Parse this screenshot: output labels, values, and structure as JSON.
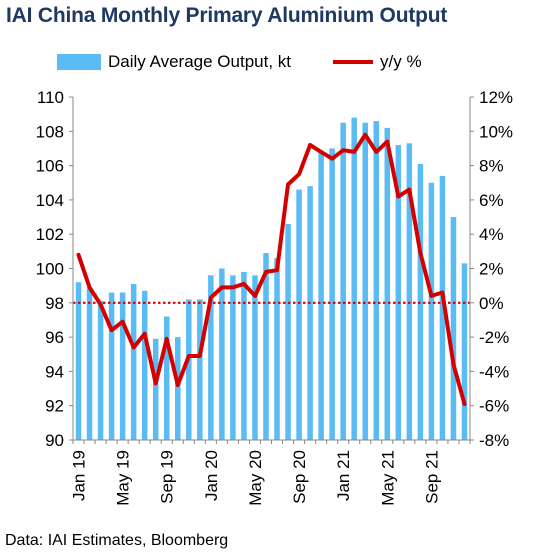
{
  "title": "IAI China Monthly Primary Aluminium Output",
  "source": "Data: IAI Estimates, Bloomberg",
  "colors": {
    "title": "#1f3864",
    "bars": "#5bbcf3",
    "line": "#d40000",
    "zero_line": "#d40000"
  },
  "chart_data": {
    "type": "bar",
    "combo_type": "bar+line",
    "legend": {
      "placement": "top",
      "entries": [
        "Daily Average Output, kt",
        "y/y %"
      ]
    },
    "categories": [
      "Jan 19",
      "Feb 19",
      "Mar 19",
      "Apr 19",
      "May 19",
      "Jun 19",
      "Jul 19",
      "Aug 19",
      "Sep 19",
      "Oct 19",
      "Nov 19",
      "Dec 19",
      "Jan 20",
      "Feb 20",
      "Mar 20",
      "Apr 20",
      "May 20",
      "Jun 20",
      "Jul 20",
      "Aug 20",
      "Sep 20",
      "Oct 20",
      "Nov 20",
      "Dec 20",
      "Jan 21",
      "Feb 21",
      "Mar 21",
      "Apr 21",
      "May 21",
      "Jun 21",
      "Jul 21",
      "Aug 21",
      "Sep 21",
      "Oct 21",
      "Nov 21",
      "Dec 21"
    ],
    "x_tick_labels": [
      "Jan 19",
      "May 19",
      "Sep 19",
      "Jan 20",
      "May 20",
      "Sep 20",
      "Jan 21",
      "May 21",
      "Sep 21"
    ],
    "x_tick_every": 4,
    "series": [
      {
        "name": "Daily Average Output, kt",
        "type": "bar",
        "axis": "left",
        "values": [
          99.2,
          98.9,
          98.1,
          98.6,
          98.6,
          99.1,
          98.7,
          95.9,
          97.2,
          96.0,
          98.2,
          98.2,
          99.6,
          100.0,
          99.6,
          99.8,
          99.6,
          100.9,
          100.6,
          102.6,
          104.6,
          104.8,
          106.8,
          107.0,
          108.5,
          108.8,
          108.5,
          108.6,
          108.2,
          107.2,
          107.3,
          106.1,
          105.0,
          105.4,
          103.0,
          100.3
        ]
      },
      {
        "name": "y/y %",
        "type": "line",
        "axis": "right",
        "values": [
          2.8,
          0.9,
          -0.1,
          -1.6,
          -1.1,
          -2.6,
          -1.8,
          -4.7,
          -2.1,
          -4.8,
          -3.1,
          -3.1,
          0.3,
          0.9,
          0.9,
          1.1,
          0.4,
          1.8,
          1.9,
          6.9,
          7.5,
          9.2,
          8.8,
          8.4,
          8.9,
          8.8,
          9.8,
          8.8,
          9.4,
          6.2,
          6.6,
          2.9,
          0.4,
          0.6,
          -3.6,
          -5.9
        ]
      }
    ],
    "y_left": {
      "min": 90,
      "max": 110,
      "step": 2,
      "tick_labels": [
        "90",
        "92",
        "94",
        "96",
        "98",
        "100",
        "102",
        "104",
        "106",
        "108",
        "110"
      ]
    },
    "y_right": {
      "min": -8,
      "max": 12,
      "step": 2,
      "tick_labels": [
        "-8%",
        "-6%",
        "-4%",
        "-2%",
        "0%",
        "2%",
        "4%",
        "6%",
        "8%",
        "10%",
        "12%"
      ]
    },
    "zero_reference": "dotted line at 0%",
    "grid": false
  }
}
